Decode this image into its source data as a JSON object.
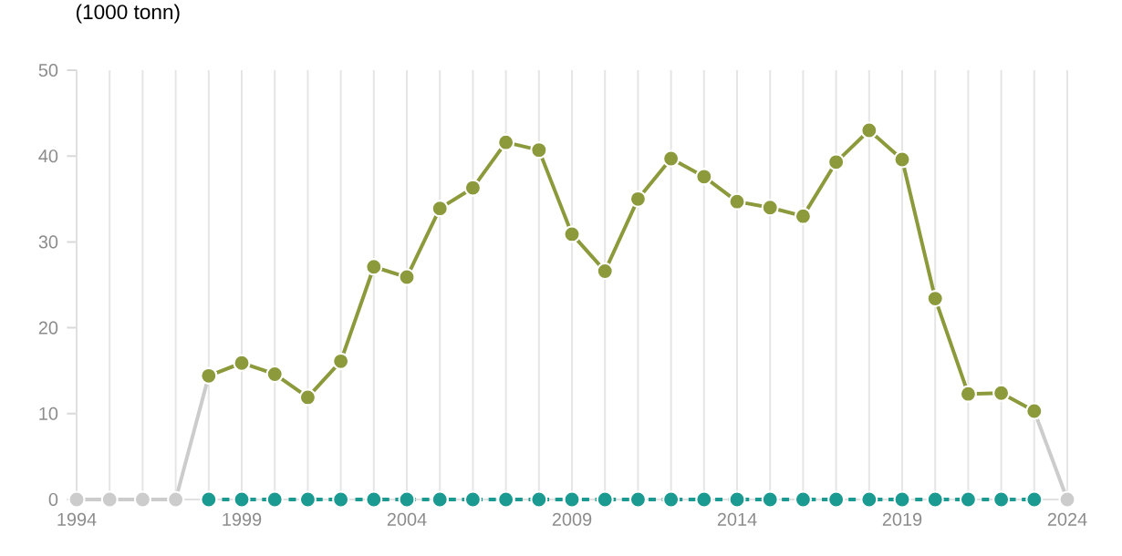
{
  "chart_data": {
    "type": "line",
    "ylabel": "(1000 tonn)",
    "xlim": [
      1994,
      2024
    ],
    "ylim": [
      0,
      50
    ],
    "xticks": [
      1994,
      {
        "value": 1995,
        "label": null
      },
      {
        "value": 1996,
        "label": null
      },
      {
        "value": 1997,
        "label": null
      },
      {
        "value": 1998,
        "label": null
      },
      1999,
      {
        "value": 2000,
        "label": null
      },
      {
        "value": 2001,
        "label": null
      },
      {
        "value": 2002,
        "label": null
      },
      {
        "value": 2003,
        "label": null
      },
      2004,
      {
        "value": 2005,
        "label": null
      },
      {
        "value": 2006,
        "label": null
      },
      {
        "value": 2007,
        "label": null
      },
      {
        "value": 2008,
        "label": null
      },
      2009,
      {
        "value": 2010,
        "label": null
      },
      {
        "value": 2011,
        "label": null
      },
      {
        "value": 2012,
        "label": null
      },
      {
        "value": 2013,
        "label": null
      },
      2014,
      {
        "value": 2015,
        "label": null
      },
      {
        "value": 2016,
        "label": null
      },
      {
        "value": 2017,
        "label": null
      },
      {
        "value": 2018,
        "label": null
      },
      2019,
      {
        "value": 2020,
        "label": null
      },
      {
        "value": 2021,
        "label": null
      },
      {
        "value": 2022,
        "label": null
      },
      {
        "value": 2023,
        "label": null
      },
      2024
    ],
    "yticks": [
      0,
      10,
      20,
      30,
      40,
      50
    ],
    "grid": "x",
    "marker": "circle",
    "series": [
      {
        "color": "#cccccc",
        "line_style": "solid",
        "x": [
          1994,
          1995,
          1996,
          1997,
          1998
        ],
        "values": [
          0,
          0,
          0,
          0,
          14.4
        ]
      },
      {
        "color": "#cccccc",
        "line_style": "solid",
        "x": [
          2023,
          2024
        ],
        "values": [
          10.3,
          0
        ]
      },
      {
        "color": "#1a9a91",
        "line_style": "dashed",
        "x": [
          1998,
          1999,
          2000,
          2001,
          2002,
          2003,
          2004,
          2005,
          2006,
          2007,
          2008,
          2009,
          2010,
          2011,
          2012,
          2013,
          2014,
          2015,
          2016,
          2017,
          2018,
          2019,
          2020,
          2021,
          2022,
          2023
        ],
        "values": [
          0,
          0,
          0,
          0,
          0,
          0,
          0,
          0,
          0,
          0,
          0,
          0,
          0,
          0,
          0,
          0,
          0,
          0,
          0,
          0,
          0,
          0,
          0,
          0,
          0,
          0
        ]
      },
      {
        "color": "#8c9a3c",
        "line_style": "solid",
        "x": [
          1998,
          1999,
          2000,
          2001,
          2002,
          2003,
          2004,
          2005,
          2006,
          2007,
          2008,
          2009,
          2010,
          2011,
          2012,
          2013,
          2014,
          2015,
          2016,
          2017,
          2018,
          2019,
          2020,
          2021,
          2022,
          2023
        ],
        "values": [
          14.4,
          15.9,
          14.6,
          11.9,
          16.1,
          27.1,
          25.9,
          33.9,
          36.3,
          41.6,
          40.7,
          30.9,
          26.6,
          35.0,
          39.7,
          37.6,
          34.7,
          34.0,
          33.0,
          39.3,
          43.0,
          39.6,
          23.4,
          12.3,
          12.4,
          10.3
        ]
      }
    ]
  }
}
